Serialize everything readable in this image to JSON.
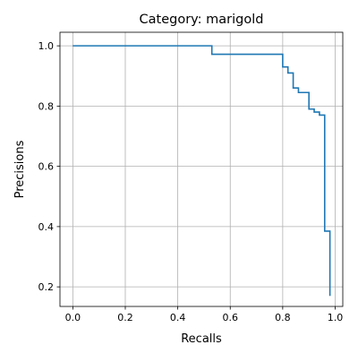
{
  "chart_data": {
    "type": "line",
    "title": "Category: marigold",
    "xlabel": "Recalls",
    "ylabel": "Precisions",
    "xlim": [
      -0.049,
      1.029
    ],
    "ylim": [
      0.135,
      1.045
    ],
    "grid": true,
    "legend": "none",
    "x_ticks": [
      0.0,
      0.2,
      0.4,
      0.6,
      0.8,
      1.0
    ],
    "x_tick_labels": [
      "0.0",
      "0.2",
      "0.4",
      "0.6",
      "0.8",
      "1.0"
    ],
    "y_ticks": [
      0.2,
      0.4,
      0.6,
      0.8,
      1.0
    ],
    "y_tick_labels": [
      "0.2",
      "0.4",
      "0.6",
      "0.8",
      "1.0"
    ],
    "series": [
      {
        "color": "#1f77b4",
        "step": "post",
        "x": [
          0.0,
          0.53,
          0.8,
          0.82,
          0.84,
          0.86,
          0.9,
          0.92,
          0.94,
          0.96,
          0.98
        ],
        "y": [
          1.0,
          0.972,
          0.93,
          0.91,
          0.86,
          0.845,
          0.79,
          0.78,
          0.77,
          0.385,
          0.17
        ]
      }
    ]
  },
  "colors": {
    "line": "#1f77b4",
    "grid": "#b0b0b0",
    "axis": "#000000"
  }
}
